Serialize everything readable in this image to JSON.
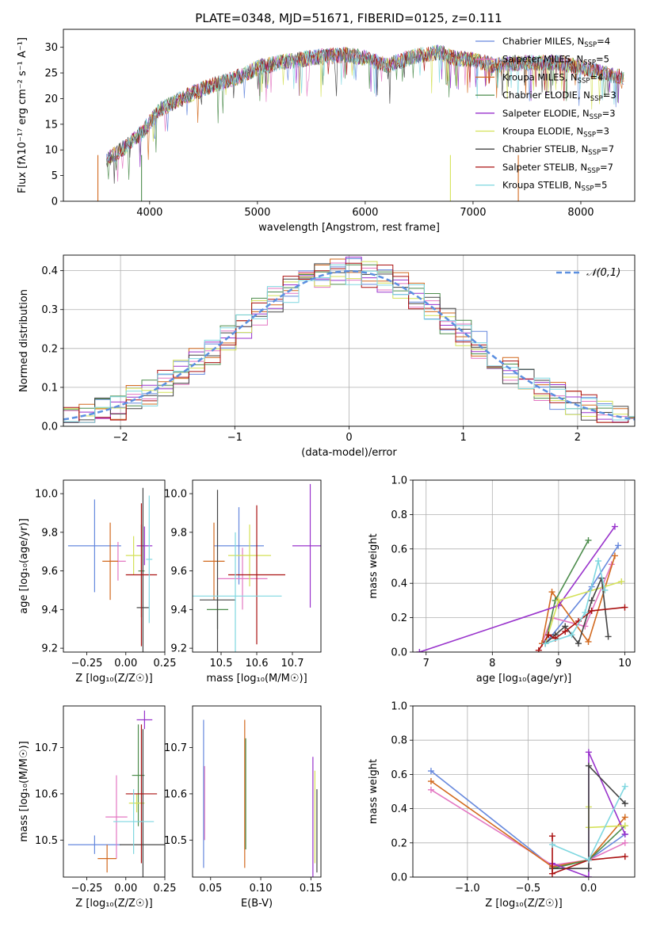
{
  "figure_title": "PLATE=0348, MJD=51671, FIBERID=0125, z=0.111",
  "legend": [
    {
      "label": "Chabrier MILES, N",
      "sub": "SSP",
      "tail": "=4",
      "color": "#6688dd"
    },
    {
      "label": "Salpeter MILES, N",
      "sub": "SSP",
      "tail": "=5",
      "color": "#e377c2"
    },
    {
      "label": "Kroupa MILES, N",
      "sub": "SSP",
      "tail": "=4",
      "color": "#d2691e"
    },
    {
      "label": "Chabrier ELODIE, N",
      "sub": "SSP",
      "tail": "=3",
      "color": "#4c8c4c"
    },
    {
      "label": "Salpeter ELODIE, N",
      "sub": "SSP",
      "tail": "=3",
      "color": "#9933cc"
    },
    {
      "label": "Kroupa ELODIE, N",
      "sub": "SSP",
      "tail": "=3",
      "color": "#d4e157"
    },
    {
      "label": "Chabrier STELIB, N",
      "sub": "SSP",
      "tail": "=7",
      "color": "#444444"
    },
    {
      "label": "Salpeter STELIB, N",
      "sub": "SSP",
      "tail": "=7",
      "color": "#aa1111"
    },
    {
      "label": "Kroupa STELIB, N",
      "sub": "SSP",
      "tail": "=5",
      "color": "#7fd7e0"
    }
  ],
  "series_colors": [
    "#6688dd",
    "#e377c2",
    "#d2691e",
    "#4c8c4c",
    "#9933cc",
    "#d4e157",
    "#444444",
    "#aa1111",
    "#7fd7e0"
  ],
  "chart_data": [
    {
      "type": "line",
      "id": "spectrum",
      "xlabel": "wavelength [Angstrom, rest frame]",
      "ylabel": "Flux [fλ10⁻¹⁷ erg cm⁻² s⁻¹ A⁻¹]",
      "xlim": [
        3200,
        8500
      ],
      "ylim": [
        0,
        33.5
      ],
      "xticks": [
        4000,
        5000,
        6000,
        7000,
        8000
      ],
      "yticks": [
        0,
        5,
        10,
        15,
        20,
        25,
        30
      ],
      "grid": false,
      "legend_position": "right",
      "continuum_x": [
        3600,
        3800,
        3950,
        4100,
        4300,
        4500,
        4800,
        5000,
        5200,
        5500,
        5800,
        6000,
        6200,
        6500,
        6700,
        6800,
        7000,
        7200,
        7500,
        7800,
        8000,
        8200,
        8400
      ],
      "continuum_y": [
        8,
        11,
        14,
        18,
        20,
        22,
        24,
        26,
        27,
        28,
        28.5,
        28,
        26.5,
        28.5,
        29,
        28,
        27.5,
        26.5,
        27,
        27,
        26,
        25,
        24
      ]
    },
    {
      "type": "bar",
      "id": "residual_histogram",
      "xlabel": "(data-model)/error",
      "ylabel": "Normed distribution",
      "xlim": [
        -2.5,
        2.5
      ],
      "ylim": [
        0,
        0.44
      ],
      "xticks": [
        -2,
        -1,
        0,
        1,
        2
      ],
      "yticks": [
        0.0,
        0.1,
        0.2,
        0.3,
        0.4
      ],
      "grid": true,
      "legend": "𝒩(0,1)",
      "legend_position": "top-right",
      "gaussian": {
        "mean": 0,
        "sigma": 1
      }
    },
    {
      "type": "scatter",
      "id": "age_vs_Z",
      "xlabel": "Z [log₁₀(Z/Z☉)]",
      "ylabel": "age  [log₁₀(age/yr)]",
      "xlim": [
        -0.4,
        0.25
      ],
      "ylim": [
        9.18,
        10.07
      ],
      "xticks": [
        -0.25,
        0.0,
        0.25
      ],
      "yticks": [
        9.2,
        9.4,
        9.6,
        9.8,
        10.0
      ],
      "points": [
        {
          "x": -0.2,
          "xerr": 0.17,
          "y": 9.73,
          "yerr": 0.24
        },
        {
          "x": -0.05,
          "xerr": 0.05,
          "y": 9.65,
          "yerr": 0.1
        },
        {
          "x": -0.1,
          "xerr": 0.05,
          "y": 9.65,
          "yerr": 0.2
        },
        {
          "x": 0.1,
          "xerr": 0.02,
          "y": 9.6,
          "yerr": 0.24
        },
        {
          "x": 0.12,
          "xerr": 0.05,
          "y": 9.73,
          "yerr": 0.1
        },
        {
          "x": 0.05,
          "xerr": 0.05,
          "y": 9.68,
          "yerr": 0.1
        },
        {
          "x": 0.11,
          "xerr": 0.04,
          "y": 9.41,
          "yerr": 0.62
        },
        {
          "x": 0.1,
          "xerr": 0.1,
          "y": 9.58,
          "yerr": 0.37
        },
        {
          "x": 0.15,
          "xerr": 0.02,
          "y": 9.66,
          "yerr": 0.33
        }
      ]
    },
    {
      "type": "scatter",
      "id": "age_vs_mass",
      "xlabel": "mass [log₁₀(M/M☉)]",
      "ylabel": "",
      "xlim": [
        10.42,
        10.78
      ],
      "ylim": [
        9.18,
        10.07
      ],
      "xticks": [
        10.5,
        10.6,
        10.7
      ],
      "yticks": [
        9.2,
        9.4,
        9.6,
        9.8,
        10.0
      ],
      "points": [
        {
          "x": 10.55,
          "xerr": 0.07,
          "y": 9.73,
          "yerr": 0.2
        },
        {
          "x": 10.56,
          "xerr": 0.07,
          "y": 9.56,
          "yerr": 0.16
        },
        {
          "x": 10.48,
          "xerr": 0.03,
          "y": 9.65,
          "yerr": 0.2
        },
        {
          "x": 10.49,
          "xerr": 0.03,
          "y": 9.4,
          "yerr": 0.1
        },
        {
          "x": 10.75,
          "xerr": 0.05,
          "y": 9.73,
          "yerr": 0.32
        },
        {
          "x": 10.58,
          "xerr": 0.06,
          "y": 9.68,
          "yerr": 0.16
        },
        {
          "x": 10.49,
          "xerr": 0.05,
          "y": 9.45,
          "yerr": 0.57
        },
        {
          "x": 10.6,
          "xerr": 0.08,
          "y": 9.58,
          "yerr": 0.36
        },
        {
          "x": 10.54,
          "xerr": 0.13,
          "y": 9.47,
          "yerr": 0.33
        }
      ]
    },
    {
      "type": "line",
      "id": "weight_vs_age",
      "xlabel": "age  [log₁₀(age/yr)]",
      "ylabel": "mass weight",
      "xlim": [
        6.8,
        10.15
      ],
      "ylim": [
        0,
        1.0
      ],
      "xticks": [
        7,
        8,
        9,
        10
      ],
      "yticks": [
        0.0,
        0.2,
        0.4,
        0.6,
        0.8,
        1.0
      ],
      "grid": true,
      "series": [
        {
          "x": [
            8.8,
            9.5,
            9.9
          ],
          "y": [
            0.05,
            0.38,
            0.62
          ]
        },
        {
          "x": [
            8.75,
            8.9,
            9.4,
            9.8
          ],
          "y": [
            0.05,
            0.2,
            0.15,
            0.51
          ]
        },
        {
          "x": [
            8.75,
            8.9,
            9.45,
            9.85
          ],
          "y": [
            0.05,
            0.35,
            0.06,
            0.56
          ]
        },
        {
          "x": [
            8.8,
            8.95,
            9.45
          ],
          "y": [
            0.05,
            0.3,
            0.65
          ]
        },
        {
          "x": [
            6.9,
            9.0,
            9.85
          ],
          "y": [
            0.0,
            0.27,
            0.73
          ]
        },
        {
          "x": [
            8.8,
            9.0,
            9.95
          ],
          "y": [
            0.05,
            0.3,
            0.41
          ]
        },
        {
          "x": [
            8.8,
            8.95,
            9.1,
            9.3,
            9.5,
            9.65,
            9.75
          ],
          "y": [
            0.05,
            0.1,
            0.15,
            0.05,
            0.3,
            0.43,
            0.09
          ]
        },
        {
          "x": [
            8.7,
            8.85,
            8.95,
            9.1,
            9.3,
            9.5,
            10.0
          ],
          "y": [
            0.01,
            0.1,
            0.08,
            0.12,
            0.18,
            0.24,
            0.26
          ]
        },
        {
          "x": [
            8.8,
            9.2,
            9.4,
            9.6,
            9.7
          ],
          "y": [
            0.05,
            0.1,
            0.23,
            0.53,
            0.36
          ]
        }
      ]
    },
    {
      "type": "scatter",
      "id": "mass_vs_Z",
      "xlabel": "Z [log₁₀(Z/Z☉)]",
      "ylabel": "mass [log₁₀(M/M☉)]",
      "xlim": [
        -0.4,
        0.25
      ],
      "ylim": [
        10.42,
        10.79
      ],
      "xticks": [
        -0.25,
        0.0,
        0.25
      ],
      "yticks": [
        10.5,
        10.6,
        10.7
      ],
      "points": [
        {
          "x": -0.2,
          "xerr": 0.17,
          "y": 10.49,
          "yerr": 0.02
        },
        {
          "x": -0.06,
          "xerr": 0.07,
          "y": 10.55,
          "yerr": 0.09
        },
        {
          "x": -0.12,
          "xerr": 0.06,
          "y": 10.46,
          "yerr": 0.03
        },
        {
          "x": 0.08,
          "xerr": 0.04,
          "y": 10.64,
          "yerr": 0.11
        },
        {
          "x": 0.12,
          "xerr": 0.05,
          "y": 10.76,
          "yerr": 0.02
        },
        {
          "x": 0.07,
          "xerr": 0.05,
          "y": 10.58,
          "yerr": 0.02
        },
        {
          "x": 0.11,
          "xerr": 0.15,
          "y": 10.49,
          "yerr": 0.25
        },
        {
          "x": 0.1,
          "xerr": 0.1,
          "y": 10.6,
          "yerr": 0.15
        },
        {
          "x": 0.05,
          "xerr": 0.13,
          "y": 10.54,
          "yerr": 0.07
        }
      ]
    },
    {
      "type": "scatter",
      "id": "mass_vs_ebv",
      "xlabel": "E(B-V)",
      "ylabel": "",
      "xlim": [
        0.032,
        0.16
      ],
      "ylim": [
        10.42,
        10.79
      ],
      "xticks": [
        0.05,
        0.1,
        0.15
      ],
      "yticks": [
        10.5,
        10.6,
        10.7
      ],
      "points": [
        {
          "x": 0.043,
          "y": 10.6,
          "yerr": 0.16
        },
        {
          "x": 0.044,
          "y": 10.58,
          "yerr": 0.08
        },
        {
          "x": 0.084,
          "y": 10.6,
          "yerr": 0.16
        },
        {
          "x": 0.085,
          "y": 10.6,
          "yerr": 0.12
        },
        {
          "x": 0.152,
          "y": 10.55,
          "yerr": 0.13
        },
        {
          "x": 0.154,
          "y": 10.55,
          "yerr": 0.1
        },
        {
          "x": 0.156,
          "y": 10.52,
          "yerr": 0.09
        }
      ]
    },
    {
      "type": "line",
      "id": "weight_vs_Z",
      "xlabel": "Z [log₁₀(Z/Z☉)]",
      "ylabel": "mass weight",
      "xlim": [
        -1.45,
        0.38
      ],
      "ylim": [
        0,
        1.0
      ],
      "xticks": [
        -1.0,
        -0.5,
        0.0
      ],
      "yticks": [
        0.0,
        0.2,
        0.4,
        0.6,
        0.8,
        1.0
      ],
      "grid": true,
      "series": [
        {
          "x": [
            -1.3,
            -0.3,
            0.0,
            0.3
          ],
          "y": [
            0.62,
            0.06,
            0.1,
            0.25
          ]
        },
        {
          "x": [
            -1.3,
            -0.3,
            0.0,
            0.3
          ],
          "y": [
            0.51,
            0.07,
            0.1,
            0.2
          ]
        },
        {
          "x": [
            -1.3,
            -0.3,
            0.0,
            0.3
          ],
          "y": [
            0.56,
            0.06,
            0.1,
            0.35
          ]
        },
        {
          "x": [
            -0.3,
            0.0,
            0.3
          ],
          "y": [
            0.05,
            0.1,
            0.3
          ]
        },
        {
          "x": [
            -0.3,
            0.0,
            0.0,
            0.3
          ],
          "y": [
            0.08,
            0.0,
            0.73,
            0.25
          ]
        },
        {
          "x": [
            0.0,
            0.0,
            0.3
          ],
          "y": [
            0.41,
            0.29,
            0.3
          ]
        },
        {
          "x": [
            -0.3,
            0.0,
            0.0,
            0.3
          ],
          "y": [
            0.05,
            0.05,
            0.65,
            0.43
          ]
        },
        {
          "x": [
            -0.3,
            -0.3,
            0.0,
            0.3
          ],
          "y": [
            0.24,
            0.02,
            0.1,
            0.12
          ]
        },
        {
          "x": [
            -0.3,
            0.0,
            0.3
          ],
          "y": [
            0.19,
            0.1,
            0.53
          ]
        }
      ]
    }
  ]
}
